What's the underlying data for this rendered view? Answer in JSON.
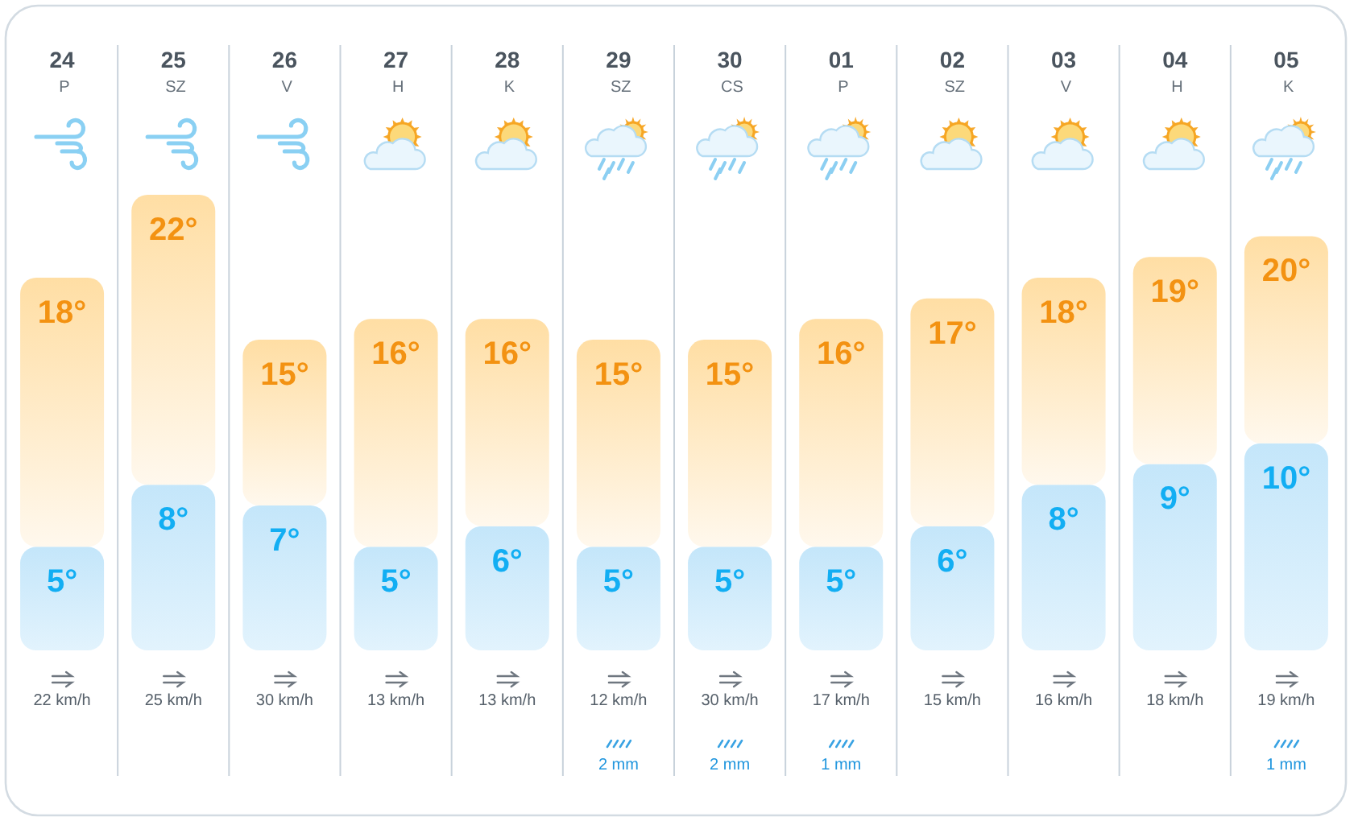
{
  "chart_data": {
    "type": "bar",
    "stacked": true,
    "categories": [
      "24 P",
      "25 SZ",
      "26 V",
      "27 H",
      "28 K",
      "29 SZ",
      "30 CS",
      "01 P",
      "02 SZ",
      "03 V",
      "04 H",
      "05 K"
    ],
    "ylim": [
      0,
      22
    ],
    "tick_labels": "x",
    "grid": "x",
    "series": [
      {
        "color": "#c4e6fa",
        "values": [
          5,
          8,
          7,
          5,
          6,
          5,
          5,
          5,
          6,
          8,
          9,
          10
        ],
        "value_labels": [
          "5°",
          "8°",
          "7°",
          "5°",
          "6°",
          "5°",
          "5°",
          "5°",
          "6°",
          "8°",
          "9°",
          "10°"
        ]
      },
      {
        "color": "#ffdea4",
        "values": [
          13,
          14,
          8,
          11,
          10,
          10,
          10,
          11,
          11,
          10,
          10,
          10
        ]
      }
    ],
    "totals": [
      "18°",
      "22°",
      "15°",
      "16°",
      "16°",
      "15°",
      "15°",
      "16°",
      "17°",
      "18°",
      "19°",
      "20°"
    ],
    "annotations": [
      {
        "text": "22 km/h",
        "x": "24 P"
      },
      {
        "text": "25 km/h",
        "x": "25 SZ"
      },
      {
        "text": "30 km/h",
        "x": "26 V"
      },
      {
        "text": "13 km/h",
        "x": "27 H"
      },
      {
        "text": "13 km/h",
        "x": "28 K"
      },
      {
        "text": "12 km/h",
        "x": "29 SZ"
      },
      {
        "text": "30 km/h",
        "x": "30 CS"
      },
      {
        "text": "17 km/h",
        "x": "01 P"
      },
      {
        "text": "15 km/h",
        "x": "02 SZ"
      },
      {
        "text": "16 km/h",
        "x": "03 V"
      },
      {
        "text": "18 km/h",
        "x": "04 H"
      },
      {
        "text": "19 km/h",
        "x": "05 K"
      },
      {
        "text": "2 mm",
        "x": "29 SZ"
      },
      {
        "text": "2 mm",
        "x": "30 CS"
      },
      {
        "text": "1 mm",
        "x": "01 P"
      },
      {
        "text": "1 mm",
        "x": "05 K"
      }
    ]
  }
}
